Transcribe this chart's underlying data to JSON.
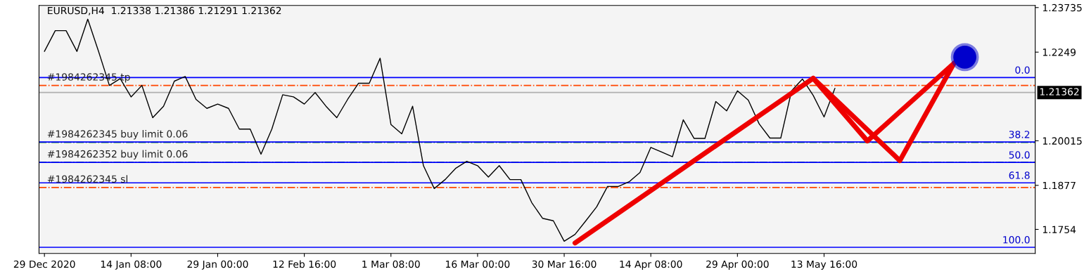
{
  "chart_data": {
    "type": "line",
    "title": "EURUSD,H4  1.21338 1.21386 1.21291 1.21362",
    "categories": [
      "29 Dec 2020",
      null,
      null,
      null,
      null,
      null,
      null,
      null,
      "14 Jan 08:00",
      null,
      null,
      null,
      null,
      null,
      null,
      null,
      "29 Jan 00:00",
      null,
      null,
      null,
      null,
      null,
      null,
      null,
      "12 Feb 16:00",
      null,
      null,
      null,
      null,
      null,
      null,
      null,
      "1 Mar 08:00",
      null,
      null,
      null,
      null,
      null,
      null,
      null,
      "16 Mar 00:00",
      null,
      null,
      null,
      null,
      null,
      null,
      null,
      "30 Mar 16:00",
      null,
      null,
      null,
      null,
      null,
      null,
      null,
      "14 Apr 08:00",
      null,
      null,
      null,
      null,
      null,
      null,
      null,
      "29 Apr 00:00",
      null,
      null,
      null,
      null,
      null,
      null,
      null,
      "13 May 16:00",
      null,
      null,
      null,
      null,
      null,
      null,
      null,
      null,
      null,
      null,
      null,
      null,
      null,
      null,
      null,
      null,
      null,
      null,
      null
    ],
    "ylim": [
      1.16868,
      1.23793
    ],
    "yticks": [
      1.1754,
      1.1877,
      1.20015,
      1.2249,
      1.23735
    ],
    "grid": false,
    "series": [
      {
        "type": "line",
        "color": "#000000",
        "values": [
          1.2251,
          1.2309,
          1.2309,
          1.2251,
          1.2341,
          1.2251,
          1.2156,
          1.2175,
          1.2124,
          1.2156,
          1.2066,
          1.2098,
          1.2168,
          1.2181,
          1.2117,
          1.2092,
          1.2104,
          1.2092,
          1.2034,
          1.2034,
          1.1964,
          1.2034,
          1.213,
          1.2124,
          1.2104,
          1.2136,
          1.2098,
          1.2066,
          1.2117,
          1.2162,
          1.2162,
          1.2232,
          1.2047,
          1.2021,
          1.2098,
          1.1932,
          1.1868,
          1.1893,
          1.1925,
          1.1944,
          1.1932,
          1.19,
          1.1932,
          1.1893,
          1.1893,
          1.1829,
          1.1785,
          1.1778,
          1.1721,
          1.174,
          1.1778,
          1.1817,
          1.1874,
          1.1874,
          1.1887,
          1.1913,
          1.1983,
          1.197,
          1.1957,
          1.206,
          1.2008,
          1.2008,
          1.2111,
          1.2085,
          1.2141,
          1.2115,
          1.2049,
          1.2009,
          1.2009,
          1.2141,
          1.2174,
          1.2128,
          1.2068,
          1.2148,
          null,
          null,
          null,
          null,
          null,
          null,
          null,
          null,
          null,
          null,
          null,
          null,
          null,
          null,
          null,
          null,
          null,
          null
        ]
      },
      {
        "type": "line",
        "color": "#ee0000",
        "values": [
          null,
          null,
          null,
          null,
          null,
          null,
          null,
          null,
          null,
          null,
          null,
          null,
          null,
          null,
          null,
          null,
          null,
          null,
          null,
          null,
          null,
          null,
          null,
          null,
          null,
          null,
          null,
          null,
          null,
          null,
          null,
          null,
          null,
          null,
          null,
          null,
          null,
          null,
          null,
          null,
          null,
          null,
          null,
          null,
          null,
          null,
          null,
          null,
          null,
          1.1716,
          null,
          null,
          null,
          null,
          null,
          null,
          null,
          null,
          null,
          null,
          null,
          null,
          null,
          null,
          null,
          null,
          null,
          null,
          null,
          null,
          null,
          1.2176,
          null,
          null,
          null,
          null,
          1.2001,
          null,
          null,
          null,
          null,
          null,
          null,
          null,
          1.2218,
          null,
          null,
          null,
          null,
          null,
          null,
          null
        ]
      },
      {
        "type": "line",
        "color": "#ee0000",
        "values": [
          null,
          null,
          null,
          null,
          null,
          null,
          null,
          null,
          null,
          null,
          null,
          null,
          null,
          null,
          null,
          null,
          null,
          null,
          null,
          null,
          null,
          null,
          null,
          null,
          null,
          null,
          null,
          null,
          null,
          null,
          null,
          null,
          null,
          null,
          null,
          null,
          null,
          null,
          null,
          null,
          null,
          null,
          null,
          null,
          null,
          null,
          null,
          null,
          null,
          null,
          null,
          null,
          null,
          null,
          null,
          null,
          null,
          null,
          null,
          null,
          null,
          null,
          null,
          null,
          null,
          null,
          null,
          null,
          null,
          null,
          null,
          1.2176,
          null,
          null,
          null,
          null,
          null,
          null,
          null,
          1.1946,
          null,
          null,
          null,
          null,
          1.2218,
          null,
          null,
          null,
          null,
          null,
          null,
          null
        ]
      },
      {
        "type": "scatter",
        "color": "#0000cc",
        "values": [
          null,
          null,
          null,
          null,
          null,
          null,
          null,
          null,
          null,
          null,
          null,
          null,
          null,
          null,
          null,
          null,
          null,
          null,
          null,
          null,
          null,
          null,
          null,
          null,
          null,
          null,
          null,
          null,
          null,
          null,
          null,
          null,
          null,
          null,
          null,
          null,
          null,
          null,
          null,
          null,
          null,
          null,
          null,
          null,
          null,
          null,
          null,
          null,
          null,
          null,
          null,
          null,
          null,
          null,
          null,
          null,
          null,
          null,
          null,
          null,
          null,
          null,
          null,
          null,
          null,
          null,
          null,
          null,
          null,
          null,
          null,
          null,
          null,
          null,
          null,
          null,
          null,
          null,
          null,
          null,
          null,
          null,
          null,
          null,
          null,
          1.2235,
          null,
          null,
          null,
          null,
          null,
          null
        ]
      }
    ],
    "ref_lines": [
      {
        "axis": "y",
        "value": 1.2156,
        "label": "#1984262345 tp",
        "color": "#ff4500",
        "line_style": "dashdot"
      },
      {
        "axis": "y",
        "value": 1.21362,
        "label": "1.21362",
        "color": "#b0b0b0",
        "line_style": "solid"
      },
      {
        "axis": "y",
        "value": 1.1997,
        "label": "#1984262345 buy limit 0.06",
        "color": "#008000",
        "line_style": "dashdot"
      },
      {
        "axis": "y",
        "value": 1.1941,
        "label": "#1984262352 buy limit 0.06",
        "color": "#008000",
        "line_style": "dashdot"
      },
      {
        "axis": "y",
        "value": 1.1871,
        "label": "#1984262345 sl",
        "color": "#ff4500",
        "line_style": "dashdot"
      },
      {
        "axis": "y",
        "value": 1.2178,
        "color": "#0000ff",
        "line_style": "solid"
      },
      {
        "axis": "y",
        "value": 1.1998,
        "color": "#0000ff",
        "line_style": "solid"
      },
      {
        "axis": "y",
        "value": 1.1941,
        "color": "#0000ff",
        "line_style": "solid"
      },
      {
        "axis": "y",
        "value": 1.1884,
        "color": "#0000ff",
        "line_style": "solid"
      },
      {
        "axis": "y",
        "value": 1.1704,
        "color": "#0000ff",
        "line_style": "solid"
      }
    ],
    "annotations": [
      {
        "text": "0.0",
        "y": 1.2178
      },
      {
        "text": "38.2",
        "y": 1.1998
      },
      {
        "text": "50.0",
        "y": 1.1941
      },
      {
        "text": "61.8",
        "y": 1.1884
      },
      {
        "text": "100.0",
        "y": 1.1704
      }
    ]
  }
}
